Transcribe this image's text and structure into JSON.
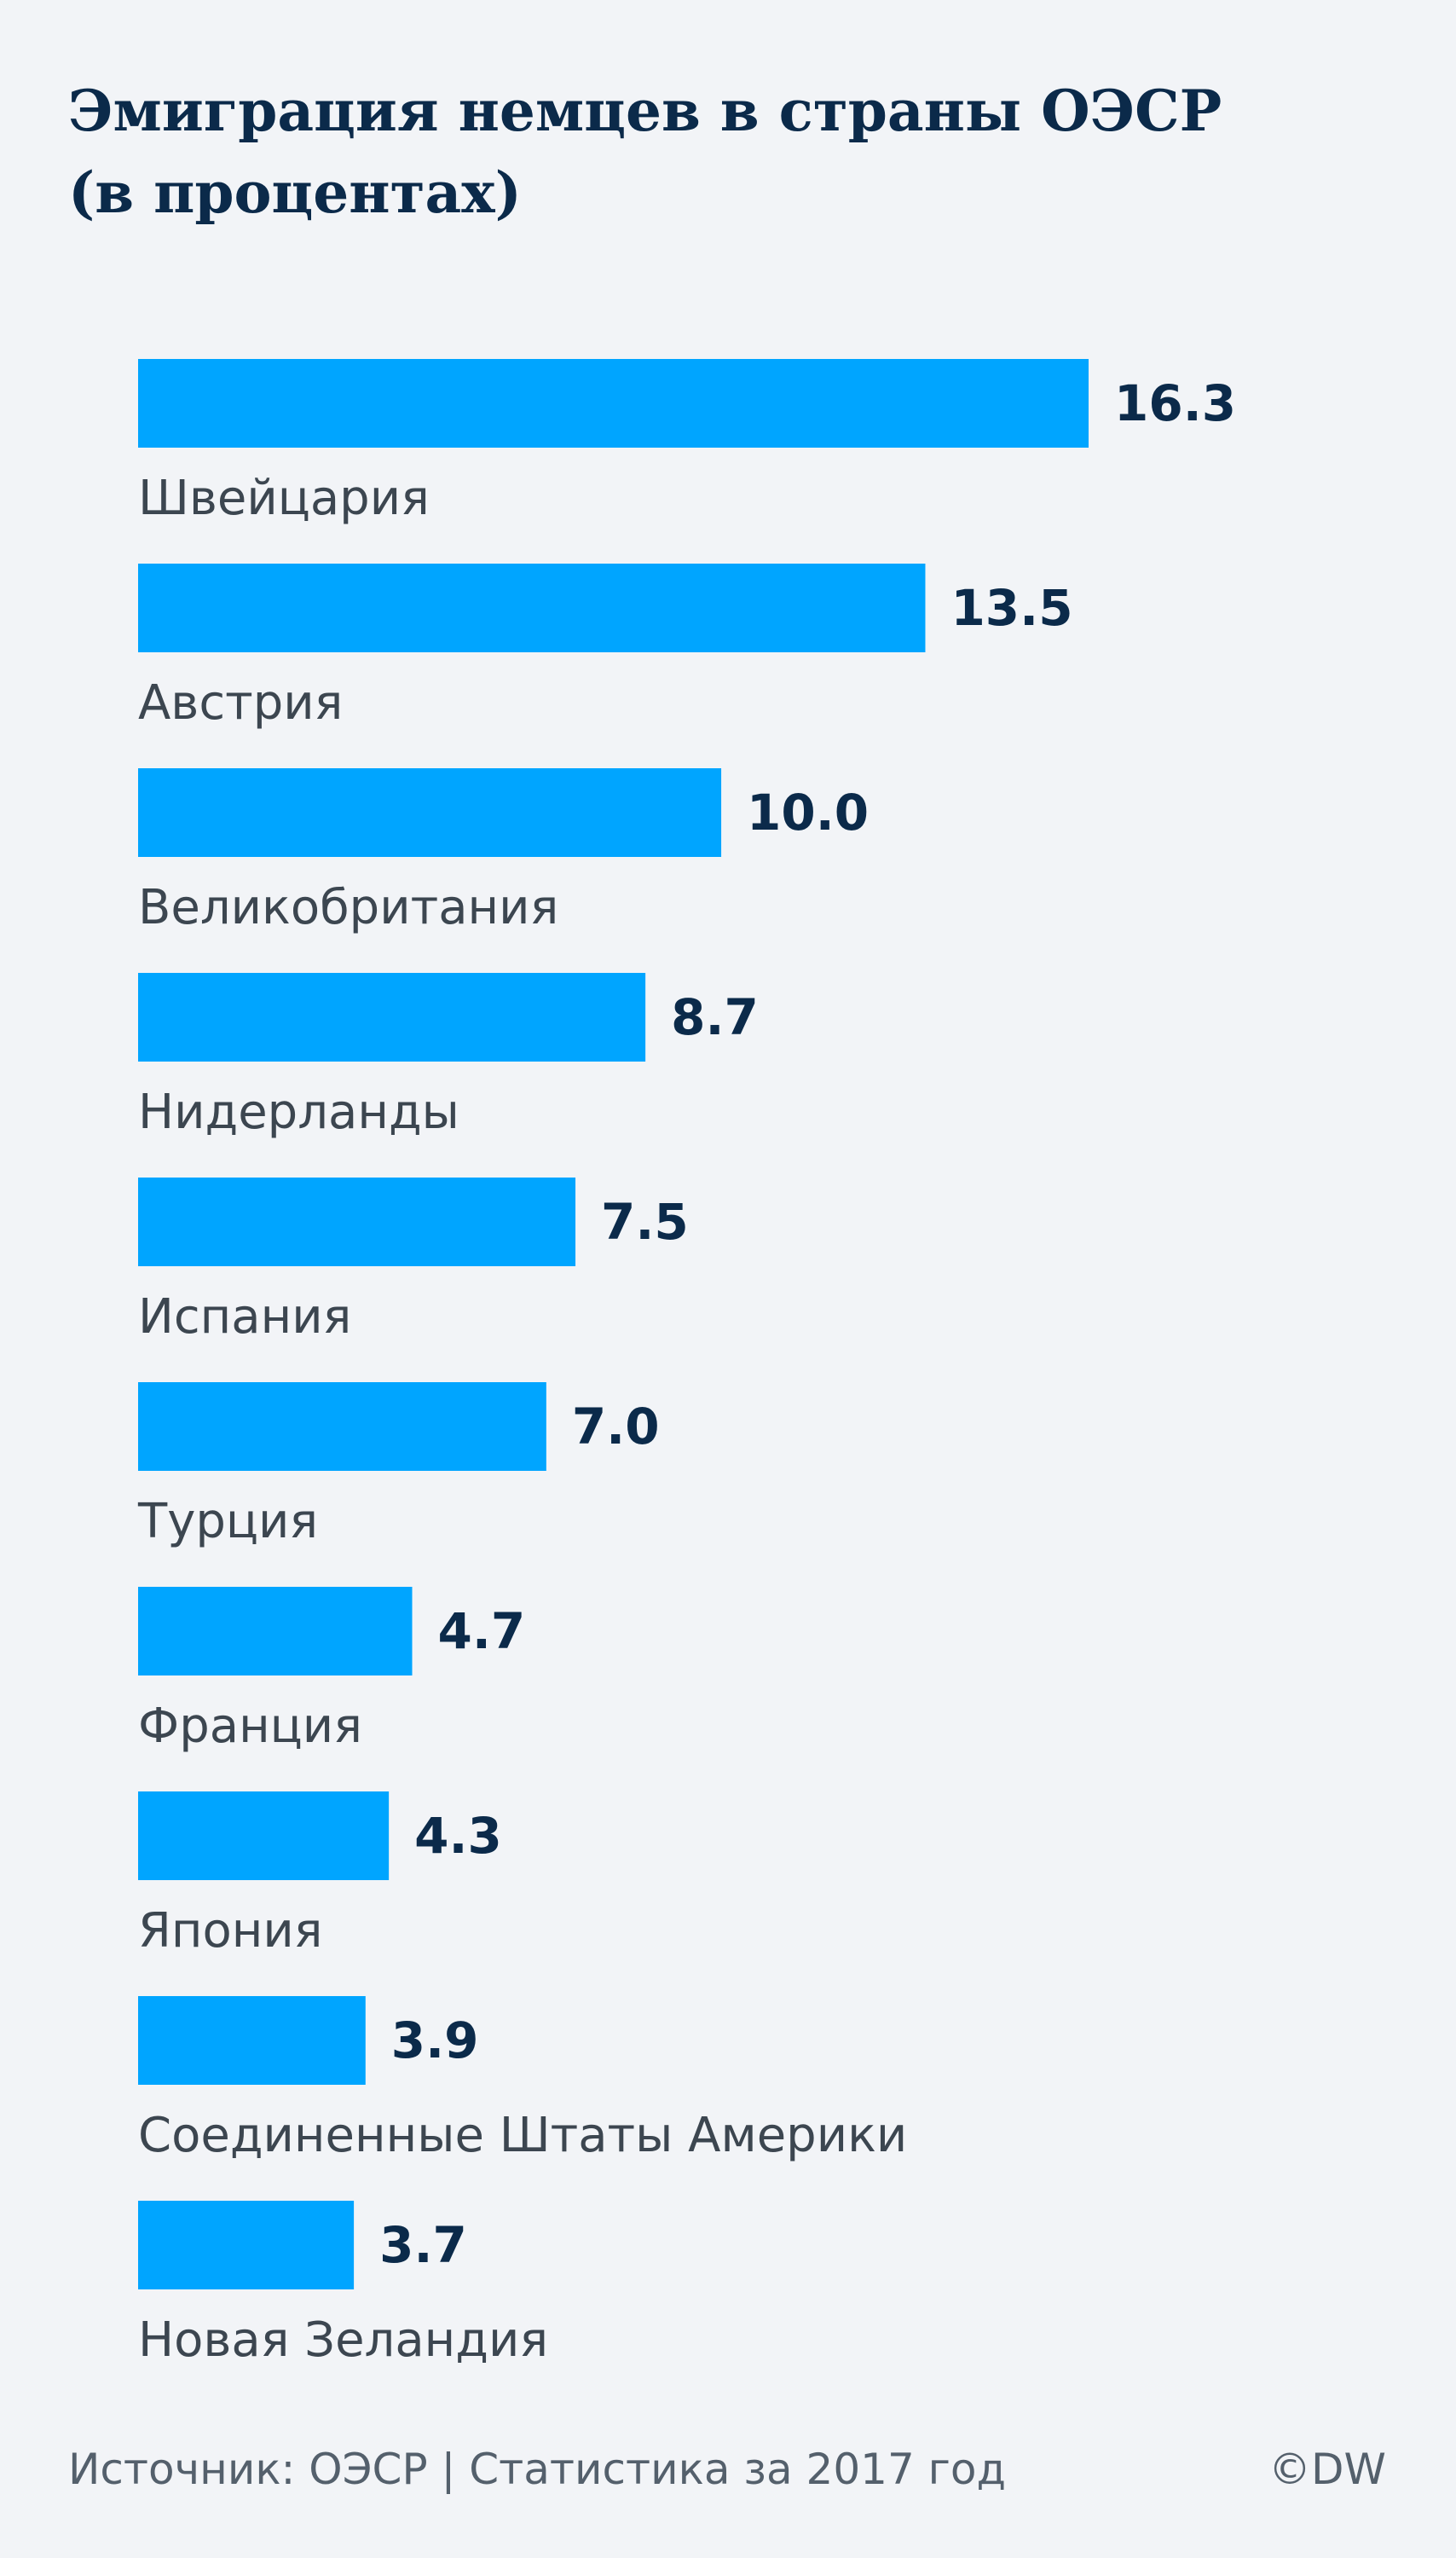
{
  "chart_data": {
    "type": "bar",
    "orientation": "horizontal",
    "title": "Эмиграция немцев в страны ОЭСР (в процентах)",
    "categories": [
      "Швейцария",
      "Австрия",
      "Великобритания",
      "Нидерланды",
      "Испания",
      "Турция",
      "Франция",
      "Япония",
      "Соединенные Штаты Америки",
      "Новая Зеландия"
    ],
    "values": [
      16.3,
      13.5,
      10.0,
      8.7,
      7.5,
      7.0,
      4.7,
      4.3,
      3.9,
      3.7
    ],
    "value_labels": [
      "16.3",
      "13.5",
      "10.0",
      "8.7",
      "7.5",
      "7.0",
      "4.7",
      "4.3",
      "3.9",
      "3.7"
    ],
    "xlim": [
      0,
      16.3
    ],
    "grid": false,
    "legend": "none",
    "colors": {
      "bar": "#00a5ff",
      "value_label": "#0b2a4a",
      "category_label": "#3c4650"
    }
  },
  "footer": {
    "source": "Источник: ОЭСР | Статистика за 2017 год",
    "credit": "©DW"
  }
}
